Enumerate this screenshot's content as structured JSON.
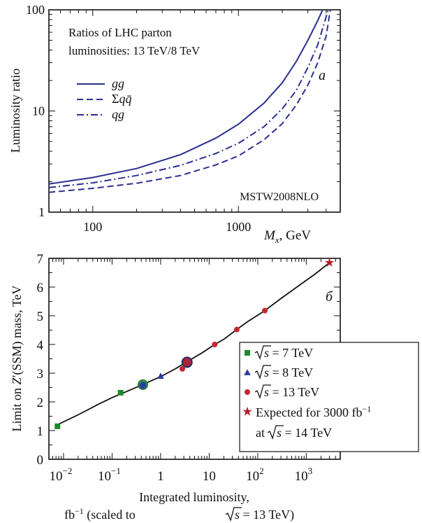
{
  "chart_data": [
    {
      "type": "line",
      "panel_label": "a",
      "annotation": "Ratios of LHC parton luminosities: 13 TeV/8 TeV",
      "annotation_lines": [
        "Ratios of LHC parton",
        "luminosities: 13 TeV/8 TeV"
      ],
      "watermark": "MSTW2008NLO",
      "xlabel_prefix": "M",
      "xlabel_sub": "x",
      "xlabel_suffix": ", GeV",
      "ylabel": "Luminosity ratio",
      "xscale": "log",
      "yscale": "log",
      "xlim": [
        50,
        5000
      ],
      "ylim": [
        1,
        100
      ],
      "x_ticks": [
        {
          "value": 100,
          "label": "100"
        },
        {
          "value": 1000,
          "label": "1000"
        }
      ],
      "y_ticks": [
        {
          "value": 1,
          "label": "1"
        },
        {
          "value": 10,
          "label": "10"
        },
        {
          "value": 100,
          "label": "100"
        }
      ],
      "legend_position": "top-left",
      "color": "#2c2f8f",
      "series": [
        {
          "name": "gg",
          "style": "solid",
          "x": [
            50,
            100,
            200,
            400,
            700,
            1000,
            1500,
            2000,
            2500,
            3000,
            3500,
            3900
          ],
          "y": [
            1.9,
            2.2,
            2.7,
            3.7,
            5.4,
            7.4,
            12,
            19,
            31,
            50,
            78,
            110
          ]
        },
        {
          "name": "Σqq̄",
          "style": "dashed",
          "x": [
            50,
            100,
            200,
            400,
            700,
            1000,
            1500,
            2000,
            2500,
            3000,
            3500,
            4000,
            4300
          ],
          "y": [
            1.57,
            1.72,
            1.93,
            2.3,
            2.93,
            3.6,
            5.2,
            7.5,
            11.5,
            18,
            30,
            55,
            105
          ]
        },
        {
          "name": "qg",
          "style": "dashdot",
          "x": [
            50,
            100,
            200,
            400,
            700,
            1000,
            1500,
            2000,
            2500,
            3000,
            3500,
            4000,
            4200
          ],
          "y": [
            1.75,
            1.95,
            2.3,
            2.9,
            3.8,
            4.8,
            7.0,
            10.5,
            16,
            27,
            45,
            85,
            110
          ]
        }
      ]
    },
    {
      "type": "scatter",
      "panel_label": "б",
      "ylabel_prefix": "Limit on ",
      "ylabel_z": "Z",
      "ylabel_suffix": "′(SSM) mass, TeV",
      "xlabel_line1": "Integrated luminosity,",
      "xlabel_line2_a": "fb",
      "xlabel_line2_sup": "−1",
      "xlabel_line2_b": " (scaled to ",
      "xlabel_line2_c": "s = 13 TeV)",
      "xscale": "log",
      "xlim": [
        0.005,
        5000
      ],
      "ylim": [
        0,
        7
      ],
      "x_ticks": [
        {
          "value": 0.01,
          "base": "10",
          "exp": "−2"
        },
        {
          "value": 0.1,
          "base": "10",
          "exp": "−1"
        },
        {
          "value": 1,
          "base": "1",
          "exp": ""
        },
        {
          "value": 10,
          "base": "10",
          "exp": ""
        },
        {
          "value": 100,
          "base": "10",
          "exp": "2"
        },
        {
          "value": 1000,
          "base": "10",
          "exp": "3"
        }
      ],
      "y_ticks": [
        0,
        1,
        2,
        3,
        4,
        5,
        6,
        7
      ],
      "fit_curve": {
        "x": [
          0.007,
          0.02,
          0.05,
          0.1,
          0.2,
          0.45,
          1,
          2,
          3.5,
          7,
          13,
          20,
          37,
          60,
          140,
          300,
          700,
          1500,
          3000
        ],
        "y": [
          1.18,
          1.55,
          1.9,
          2.15,
          2.36,
          2.62,
          2.88,
          3.15,
          3.4,
          3.7,
          4.0,
          4.18,
          4.52,
          4.78,
          5.18,
          5.6,
          6.05,
          6.45,
          6.85
        ]
      },
      "legend_position": "lower-right",
      "series": [
        {
          "name": "√s = 7 TeV",
          "marker": "square",
          "color": "#1f8a2a",
          "x": [
            0.0075,
            0.15
          ],
          "y": [
            1.15,
            2.32
          ],
          "highlight": {
            "x": 0.43,
            "y": 2.6
          }
        },
        {
          "name": "√s = 8 TeV",
          "marker": "triangle",
          "color": "#2a3c9c",
          "x": [
            1.0
          ],
          "y": [
            2.9
          ],
          "highlight": {
            "x": 0.43,
            "y": 2.58
          }
        },
        {
          "name": "√s = 13 TeV",
          "marker": "circle",
          "color": "#c8262e",
          "x": [
            2.8,
            13,
            37,
            140
          ],
          "y": [
            3.15,
            4.0,
            4.52,
            5.18
          ],
          "highlight": {
            "x": 3.5,
            "y": 3.38
          }
        },
        {
          "name": "Expected for 3000 fb⁻¹ at √s = 14 TeV",
          "marker": "star",
          "color": "#b0202a",
          "x": [
            3000
          ],
          "y": [
            6.85
          ]
        }
      ],
      "legend": [
        {
          "text_a": "s = 7 TeV",
          "sqrt": true
        },
        {
          "text_a": "s = 8 TeV",
          "sqrt": true
        },
        {
          "text_a": "s = 13 TeV",
          "sqrt": true
        },
        {
          "line1_a": "Expected for 3000 fb",
          "line1_sup": "−1",
          "line2_a": "at ",
          "line2_b": "s = 14 TeV"
        }
      ]
    }
  ]
}
